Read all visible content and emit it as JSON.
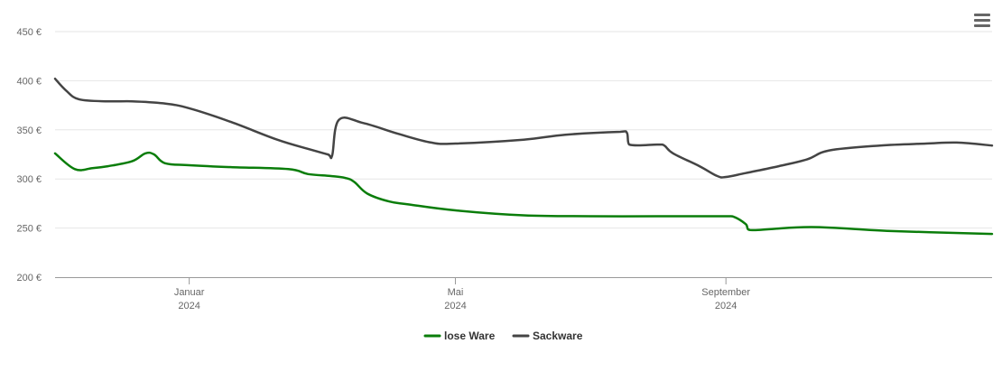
{
  "menu": {
    "icon": "hamburger-menu-icon"
  },
  "chart_data": {
    "type": "line",
    "title": "",
    "xlabel": "",
    "ylabel": "",
    "y_tick_labels": [
      "200 €",
      "250 €",
      "300 €",
      "350 €",
      "400 €",
      "450 €"
    ],
    "y_ticks": [
      200,
      250,
      300,
      350,
      400,
      450
    ],
    "ylim": [
      200,
      450
    ],
    "xlim": [
      "2023-11-01",
      "2024-12-31"
    ],
    "x_ticks": [
      {
        "date": "2024-01-01",
        "label": "Januar",
        "year": "2024"
      },
      {
        "date": "2024-05-01",
        "label": "Mai",
        "year": "2024"
      },
      {
        "date": "2024-09-01",
        "label": "September",
        "year": "2024"
      }
    ],
    "grid": true,
    "legend_position": "bottom-center",
    "series": [
      {
        "name": "lose Ware",
        "color": "#0a7d0a",
        "points": [
          [
            "2023-11-01",
            326
          ],
          [
            "2023-11-10",
            310
          ],
          [
            "2023-11-18",
            311
          ],
          [
            "2023-11-25",
            313
          ],
          [
            "2023-12-06",
            318
          ],
          [
            "2023-12-12",
            326
          ],
          [
            "2023-12-16",
            325
          ],
          [
            "2023-12-21",
            316
          ],
          [
            "2024-01-01",
            314
          ],
          [
            "2024-01-20",
            312
          ],
          [
            "2024-02-15",
            310
          ],
          [
            "2024-02-24",
            305
          ],
          [
            "2024-03-05",
            303
          ],
          [
            "2024-03-12",
            301
          ],
          [
            "2024-03-16",
            297
          ],
          [
            "2024-03-22",
            285
          ],
          [
            "2024-04-01",
            277
          ],
          [
            "2024-04-10",
            274
          ],
          [
            "2024-05-01",
            268
          ],
          [
            "2024-06-01",
            263
          ],
          [
            "2024-07-01",
            262
          ],
          [
            "2024-08-01",
            262
          ],
          [
            "2024-09-01",
            262
          ],
          [
            "2024-09-05",
            261
          ],
          [
            "2024-09-10",
            254
          ],
          [
            "2024-09-12",
            248
          ],
          [
            "2024-10-10",
            251
          ],
          [
            "2024-11-15",
            247
          ],
          [
            "2024-12-31",
            244
          ]
        ]
      },
      {
        "name": "Sackware",
        "color": "#444444",
        "points": [
          [
            "2023-11-01",
            402
          ],
          [
            "2023-11-06",
            390
          ],
          [
            "2023-11-12",
            381
          ],
          [
            "2023-11-25",
            379
          ],
          [
            "2023-12-06",
            379
          ],
          [
            "2023-12-20",
            377
          ],
          [
            "2024-01-01",
            372
          ],
          [
            "2024-01-20",
            358
          ],
          [
            "2024-02-10",
            340
          ],
          [
            "2024-02-25",
            330
          ],
          [
            "2024-03-04",
            325
          ],
          [
            "2024-03-06",
            324
          ],
          [
            "2024-03-09",
            360
          ],
          [
            "2024-03-20",
            357
          ],
          [
            "2024-04-05",
            346
          ],
          [
            "2024-04-20",
            337
          ],
          [
            "2024-05-01",
            336
          ],
          [
            "2024-06-01",
            340
          ],
          [
            "2024-06-20",
            345
          ],
          [
            "2024-07-15",
            348
          ],
          [
            "2024-07-18",
            347
          ],
          [
            "2024-07-19",
            335
          ],
          [
            "2024-08-01",
            335
          ],
          [
            "2024-08-04",
            334
          ],
          [
            "2024-08-08",
            326
          ],
          [
            "2024-08-20",
            313
          ],
          [
            "2024-08-28",
            303
          ],
          [
            "2024-09-01",
            302
          ],
          [
            "2024-09-10",
            306
          ],
          [
            "2024-09-25",
            313
          ],
          [
            "2024-10-08",
            320
          ],
          [
            "2024-10-18",
            329
          ],
          [
            "2024-11-10",
            334
          ],
          [
            "2024-12-01",
            336
          ],
          [
            "2024-12-15",
            337
          ],
          [
            "2024-12-31",
            334
          ]
        ]
      }
    ]
  }
}
